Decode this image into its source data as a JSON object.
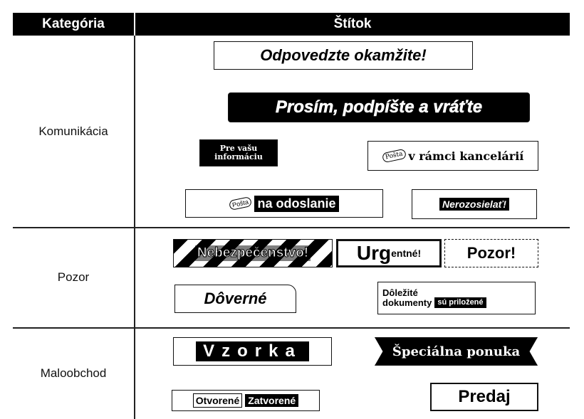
{
  "header": {
    "category": "Kategória",
    "label": "Štítok"
  },
  "rows": [
    {
      "category": "Komunikácia",
      "labels": [
        [
          "Odpovedzte okamžite!"
        ],
        [
          "Prosím, podpíšte a vráťte"
        ],
        [
          "Pre vašu",
          "informáciu"
        ],
        [
          "Pošta",
          "v rámci kancelárií"
        ],
        [
          "Pošta",
          "na odoslanie"
        ],
        [
          "Nerozosielať!"
        ]
      ]
    },
    {
      "category": "Pozor",
      "labels": [
        [
          "Nebezpečenstvo!"
        ],
        [
          "Urg",
          "entné!"
        ],
        [
          "Pozor!"
        ],
        [
          "Dôverné"
        ],
        [
          "Dôležité",
          "dokumenty",
          "sú priložené"
        ]
      ]
    },
    {
      "category": "Maloobchod",
      "labels": [
        [
          "Vzorka"
        ],
        [
          "Špeciálna ponuka"
        ],
        [
          "Otvorené",
          "Zatvorené"
        ],
        [
          "Predaj"
        ]
      ]
    }
  ]
}
